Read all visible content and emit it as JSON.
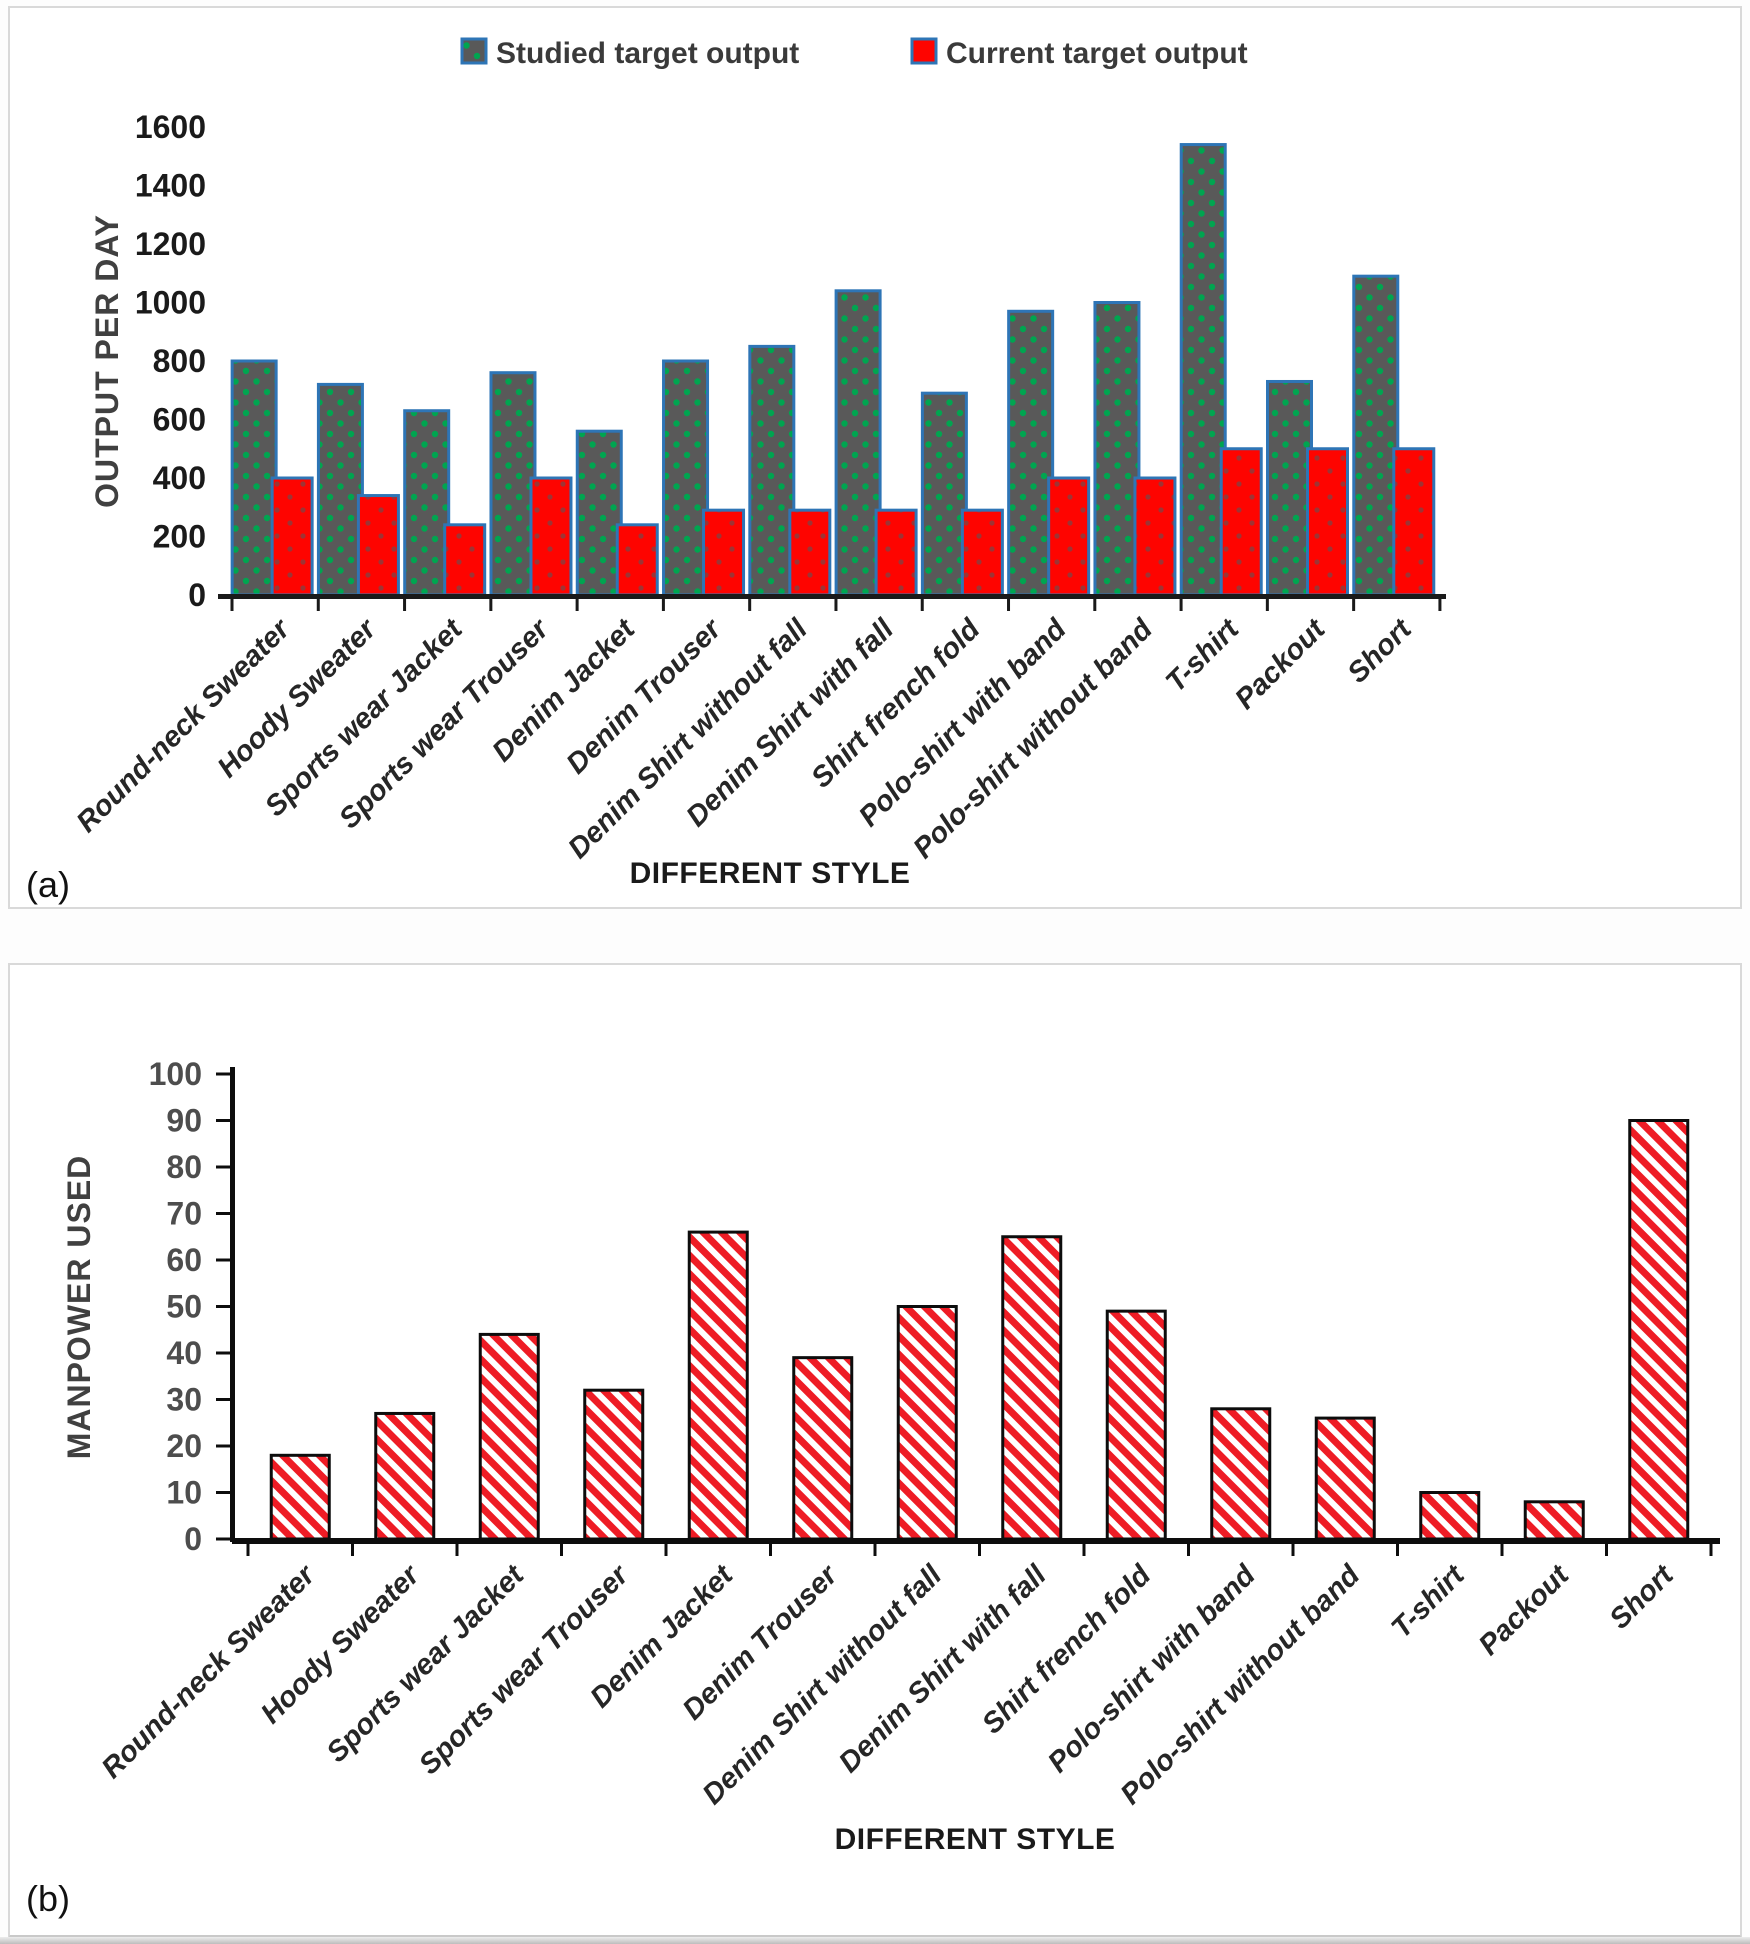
{
  "colors": {
    "studied_fill": "#595959",
    "studied_dot": "#00A550",
    "series_border_blue": "#2E75B6",
    "current_fill": "#FE0400",
    "current_dot": "#9E3434",
    "hatch_red": "#EE1C25",
    "axis_black": "#1a1a1a"
  },
  "chart_data": [
    {
      "type": "bar",
      "panel_label": "(a)",
      "categories": [
        "Round-neck Sweater",
        "Hoody Sweater",
        "Sports wear Jacket",
        "Sports wear Trouser",
        "Denim Jacket",
        "Denim Trouser",
        "Denim Shirt without fall",
        "Denim Shirt with fall",
        "Shirt french fold",
        "Polo-shirt with band",
        "Polo-shirt without band",
        "T-shirt",
        "Packout",
        "Short"
      ],
      "series": [
        {
          "name": "Studied target output",
          "values": [
            800,
            720,
            630,
            760,
            560,
            800,
            850,
            1040,
            690,
            970,
            1000,
            1540,
            730,
            1090
          ]
        },
        {
          "name": "Current target output",
          "values": [
            400,
            340,
            240,
            400,
            240,
            290,
            290,
            290,
            290,
            400,
            400,
            500,
            500,
            500
          ]
        }
      ],
      "xlabel": "DIFFERENT STYLE",
      "ylabel": "OUTPUT PER DAY",
      "ylim": [
        0,
        1600
      ],
      "ytick_step": 200,
      "grid": false,
      "legend_position": "top-center"
    },
    {
      "type": "bar",
      "panel_label": "(b)",
      "categories": [
        "Round-neck Sweater",
        "Hoody Sweater",
        "Sports wear Jacket",
        "Sports wear Trouser",
        "Denim Jacket",
        "Denim Trouser",
        "Denim Shirt without fall",
        "Denim Shirt with fall",
        "Shirt french fold",
        "Polo-shirt with band",
        "Polo-shirt without band",
        "T-shirt",
        "Packout",
        "Short"
      ],
      "series": [
        {
          "name": "Manpower used",
          "values": [
            18,
            27,
            44,
            32,
            66,
            39,
            50,
            65,
            49,
            28,
            26,
            10,
            8,
            90
          ]
        }
      ],
      "xlabel": "DIFFERENT STYLE",
      "ylabel": "MANPOWER USED",
      "ylim": [
        0,
        100
      ],
      "ytick_step": 10,
      "grid": false,
      "legend_position": "none"
    }
  ]
}
